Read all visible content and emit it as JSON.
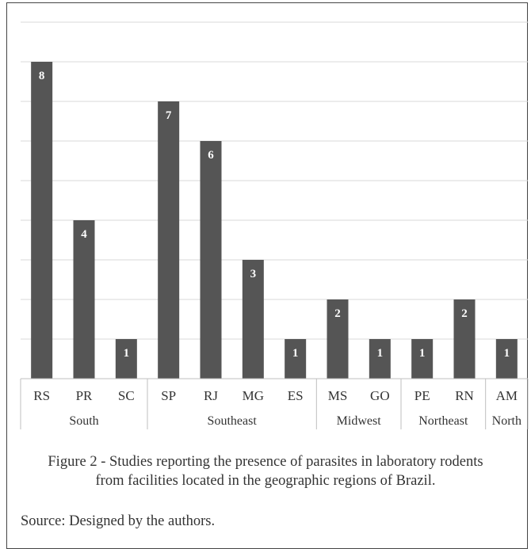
{
  "chart_data": {
    "type": "bar",
    "categories": [
      "RS",
      "PR",
      "SC",
      "SP",
      "RJ",
      "MG",
      "ES",
      "MS",
      "GO",
      "PE",
      "RN",
      "AM"
    ],
    "values": [
      8,
      4,
      1,
      7,
      6,
      3,
      1,
      2,
      1,
      1,
      2,
      1
    ],
    "groups": [
      {
        "name": "South",
        "count": 3
      },
      {
        "name": "Southeast",
        "count": 4
      },
      {
        "name": "Midwest",
        "count": 2
      },
      {
        "name": "Northeast",
        "count": 2
      },
      {
        "name": "North",
        "count": 1
      }
    ],
    "ylim": [
      0,
      9
    ],
    "grid": true,
    "bar_color": "#555555",
    "label_color": "#ffffff"
  },
  "caption": {
    "line1": "Figure 2 - Studies reporting the presence of parasites in laboratory rodents",
    "line2": "from facilities located in the geographic regions of Brazil."
  },
  "source": "Source: Designed by the authors."
}
